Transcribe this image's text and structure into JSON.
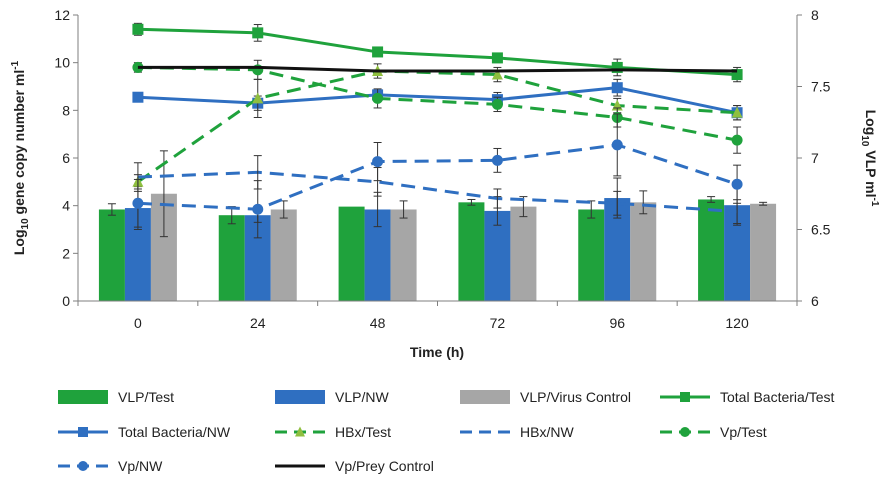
{
  "chart_data": {
    "type": "bar",
    "title": "",
    "xlabel": "Time (h)",
    "ylabel_left": "Log10 gene copy number ml-1",
    "ylabel_right": "Log10 VLP ml-1",
    "ylabel_left_parts": {
      "pre": "Log",
      "sub": "10",
      "post": " gene copy number ml",
      "sup": "-1"
    },
    "ylabel_right_parts": {
      "pre": "Log",
      "sub": "10",
      "post": " VLP ml",
      "sup": "-1"
    },
    "categories": [
      "0",
      "24",
      "48",
      "72",
      "96",
      "120"
    ],
    "ylim_left": [
      0,
      12
    ],
    "yticks_left": [
      "0",
      "2",
      "4",
      "6",
      "8",
      "10",
      "12"
    ],
    "ylim_right": [
      6,
      8
    ],
    "yticks_right": [
      "6",
      "6.5",
      "7",
      "7.5",
      "8"
    ],
    "legend_position": "bottom",
    "bar_series": [
      {
        "name": "VLP/Test",
        "color": "#1fa23c",
        "axis": "right",
        "values": [
          6.64,
          6.6,
          6.66,
          6.69,
          6.64,
          6.71
        ],
        "errors": [
          0.04,
          0.06,
          0.0,
          0.02,
          0.06,
          0.02
        ]
      },
      {
        "name": "VLP/NW",
        "color": "#2f6fc1",
        "axis": "right",
        "values": [
          6.65,
          6.6,
          6.64,
          6.63,
          6.72,
          6.67
        ],
        "errors": [
          0.15,
          0.05,
          0.12,
          0.1,
          0.14,
          0.14
        ]
      },
      {
        "name": "VLP/Virus Control",
        "color": "#a6a6a6",
        "axis": "right",
        "values": [
          6.75,
          6.64,
          6.64,
          6.66,
          6.69,
          6.68
        ],
        "errors": [
          0.3,
          0.06,
          0.06,
          0.07,
          0.08,
          0.01
        ]
      }
    ],
    "line_series": [
      {
        "name": "Total Bacteria/Test",
        "color": "#1fa23c",
        "dash": "solid",
        "marker": "square",
        "axis": "left",
        "values": [
          11.4,
          11.25,
          10.45,
          10.2,
          9.8,
          9.5
        ],
        "errors": [
          0.25,
          0.35,
          0.15,
          0.2,
          0.35,
          0.3
        ]
      },
      {
        "name": "Total Bacteria/NW",
        "color": "#2f6fc1",
        "dash": "solid",
        "marker": "square",
        "axis": "left",
        "values": [
          8.55,
          8.3,
          8.65,
          8.45,
          8.95,
          7.9
        ],
        "errors": [
          0.1,
          0.3,
          0.2,
          0.3,
          0.35,
          0.3
        ]
      },
      {
        "name": "HBx/Test",
        "color": "#1fa23c",
        "dash": "dashed",
        "marker": "triangle",
        "axis": "left",
        "values": [
          5.0,
          8.5,
          9.65,
          9.5,
          8.2,
          7.9
        ],
        "errors": [
          0.3,
          0.8,
          0.3,
          0.3,
          0.3,
          0.3
        ]
      },
      {
        "name": "HBx/NW",
        "color": "#2f6fc1",
        "dash": "dashed",
        "marker": "none",
        "axis": "left",
        "values": [
          5.2,
          5.4,
          5.0,
          4.3,
          4.1,
          3.75
        ],
        "errors": [
          0.6,
          0.7,
          0.6,
          0.4,
          0.5,
          0.5
        ]
      },
      {
        "name": "Vp/Test",
        "color": "#1fa23c",
        "dash": "dashed",
        "marker": "circle",
        "axis": "left",
        "values": [
          9.8,
          9.7,
          8.5,
          8.25,
          7.7,
          6.75
        ],
        "errors": [
          0.2,
          0.4,
          0.4,
          0.3,
          0.4,
          0.55
        ]
      },
      {
        "name": "Vp/NW",
        "color": "#2f6fc1",
        "dash": "dashed",
        "marker": "circle",
        "axis": "left",
        "values": [
          4.1,
          3.85,
          5.85,
          5.9,
          6.55,
          4.9
        ],
        "errors": [
          1.0,
          1.2,
          0.8,
          0.5,
          1.3,
          0.8
        ]
      },
      {
        "name": "Vp/Prey Control",
        "color": "#111111",
        "dash": "solid",
        "marker": "none",
        "axis": "left",
        "values": [
          9.8,
          9.8,
          9.65,
          9.65,
          9.7,
          9.65
        ],
        "errors": [
          0,
          0,
          0,
          0,
          0,
          0
        ]
      }
    ]
  }
}
